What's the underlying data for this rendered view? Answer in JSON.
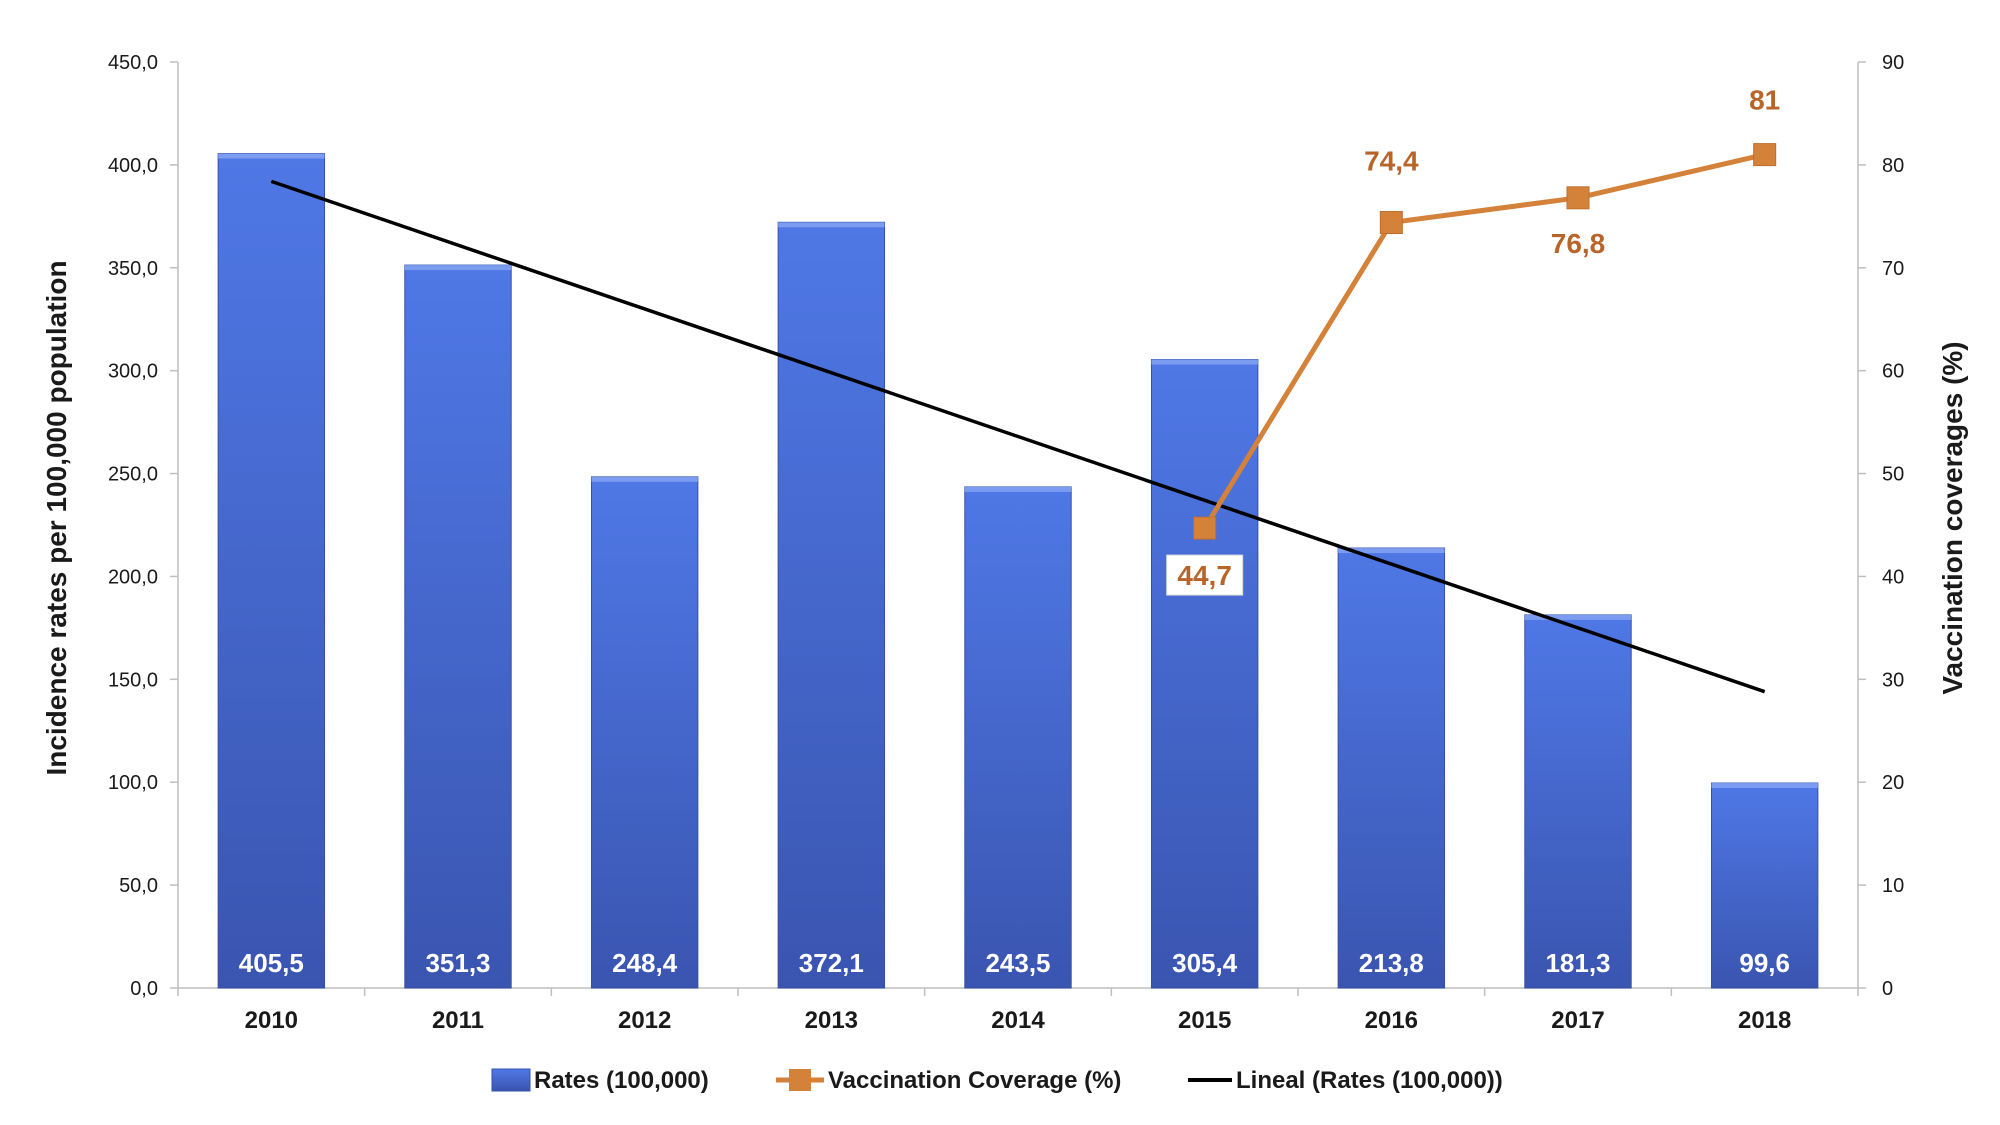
{
  "chart_data": {
    "type": "bar",
    "categories": [
      "2010",
      "2011",
      "2012",
      "2013",
      "2014",
      "2015",
      "2016",
      "2017",
      "2018"
    ],
    "series": [
      {
        "name": "Rates (100,000)",
        "type": "bar",
        "axis": "left",
        "values": [
          405.5,
          351.3,
          248.4,
          372.1,
          243.5,
          305.4,
          213.8,
          181.3,
          99.6
        ],
        "labels": [
          "405,5",
          "351,3",
          "248,4",
          "372,1",
          "243,5",
          "305,4",
          "213,8",
          "181,3",
          "99,6"
        ],
        "color": "#4a6fdc"
      },
      {
        "name": "Vaccination Coverage (%)",
        "type": "line",
        "axis": "right",
        "points": [
          {
            "x": "2015",
            "y": 44.7,
            "label": "44,7"
          },
          {
            "x": "2016",
            "y": 74.4,
            "label": "74,4"
          },
          {
            "x": "2017",
            "y": 76.8,
            "label": "76,8"
          },
          {
            "x": "2018",
            "y": 81,
            "label": "81"
          }
        ],
        "color": "#d4813a",
        "label_color": "#b8652a"
      },
      {
        "name": "Lineal (Rates (100,000))",
        "type": "trendline",
        "axis": "left",
        "start": {
          "x": "2010",
          "y": 392
        },
        "end": {
          "x": "2018",
          "y": 144
        },
        "color": "#000000"
      }
    ],
    "ylabel": "Incidence rates per 100,000 population",
    "y2label": "Vaccination coverages (%)",
    "ylim": [
      0,
      450
    ],
    "yticks": [
      0,
      50,
      100,
      150,
      200,
      250,
      300,
      350,
      400,
      450
    ],
    "ytick_labels": [
      "0,0",
      "50,0",
      "100,0",
      "150,0",
      "200,0",
      "250,0",
      "300,0",
      "350,0",
      "400,0",
      "450,0"
    ],
    "y2lim": [
      0,
      90
    ],
    "y2ticks": [
      0,
      10,
      20,
      30,
      40,
      50,
      60,
      70,
      80,
      90
    ],
    "y2tick_labels": [
      "0",
      "10",
      "20",
      "30",
      "40",
      "50",
      "60",
      "70",
      "80",
      "90"
    ],
    "grid": false,
    "legend_position": "bottom-center"
  }
}
